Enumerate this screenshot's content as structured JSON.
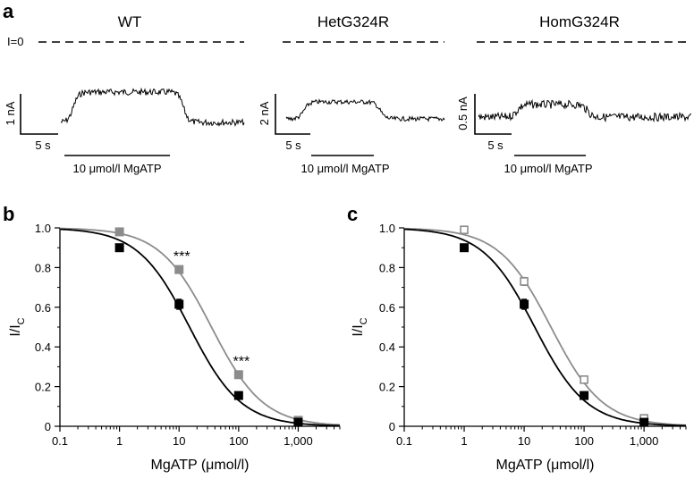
{
  "panel_a": {
    "letter": "a",
    "zero_current_label": "I=0",
    "traces": [
      {
        "title": "WT",
        "current_scale": "1 nA",
        "time_scale": "5 s",
        "drug_label": "10 μmol/l MgATP"
      },
      {
        "title": "HetG324R",
        "current_scale": "2 nA",
        "time_scale": "5 s",
        "drug_label": "10 μmol/l MgATP"
      },
      {
        "title": "HomG324R",
        "current_scale": "0.5 nA",
        "time_scale": "5 s",
        "drug_label": "10 μmol/l MgATP"
      }
    ]
  },
  "colors": {
    "wt": "#000000",
    "mutant": "#8c8c8c"
  },
  "chart_data": [
    {
      "type": "scatter",
      "panel": "b",
      "xlabel": "MgATP (μmol/l)",
      "ylabel": "I/I",
      "ylabel_sub": "C",
      "xscale": "log",
      "xlim": [
        0.1,
        5000
      ],
      "ylim": [
        0,
        1.0
      ],
      "x_ticks": [
        "0.1",
        "1",
        "10",
        "100",
        "1,000"
      ],
      "y_ticks": [
        "0",
        "0.2",
        "0.4",
        "0.6",
        "0.8",
        "1.0"
      ],
      "x": [
        1,
        10,
        100,
        1000
      ],
      "series": [
        {
          "values": [
            0.9,
            0.615,
            0.155,
            0.02
          ],
          "err": [
            0.015,
            0.025,
            0.012,
            0.005
          ],
          "marker": "filled",
          "color": "#000000",
          "ic50": 15
        },
        {
          "values": [
            0.98,
            0.79,
            0.26,
            0.03
          ],
          "err": [
            0.01,
            0.012,
            0.012,
            0.006
          ],
          "marker": "filled",
          "color": "#8c8c8c",
          "ic50": 35
        }
      ],
      "annotations": [
        {
          "x": 10,
          "text": "***"
        },
        {
          "x": 100,
          "text": "***"
        }
      ]
    },
    {
      "type": "scatter",
      "panel": "c",
      "xlabel": "MgATP (μmol/l)",
      "ylabel": "I/I",
      "ylabel_sub": "C",
      "xscale": "log",
      "xlim": [
        0.1,
        5000
      ],
      "ylim": [
        0,
        1.0
      ],
      "x_ticks": [
        "0.1",
        "1",
        "10",
        "100",
        "1,000"
      ],
      "y_ticks": [
        "0",
        "0.2",
        "0.4",
        "0.6",
        "0.8",
        "1.0"
      ],
      "x": [
        1,
        10,
        100,
        1000
      ],
      "series": [
        {
          "values": [
            0.9,
            0.615,
            0.155,
            0.02
          ],
          "err": [
            0.015,
            0.025,
            0.012,
            0.005
          ],
          "marker": "filled",
          "color": "#000000",
          "ic50": 15
        },
        {
          "values": [
            0.99,
            0.73,
            0.235,
            0.04
          ],
          "err": [
            0.012,
            0.02,
            0.01,
            0.008
          ],
          "marker": "open",
          "color": "#8c8c8c",
          "ic50": 28
        }
      ],
      "annotations": []
    }
  ]
}
